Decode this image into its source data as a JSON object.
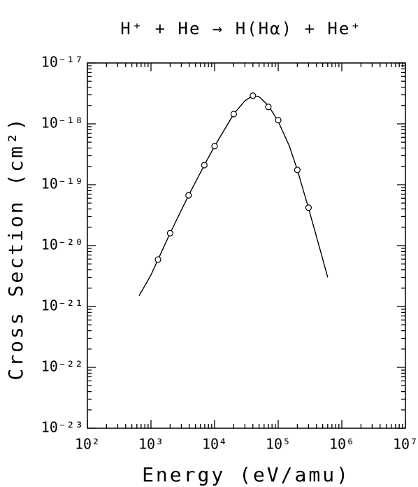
{
  "chart_data": {
    "type": "scatter",
    "title": "H⁺ + He → H(Hα) + He⁺",
    "xlabel": "Energy (eV/amu)",
    "ylabel": "Cross Section (cm²)",
    "xscale": "log",
    "yscale": "log",
    "xlim": [
      100,
      10000000
    ],
    "ylim": [
      1e-23,
      1e-17
    ],
    "xticks": [
      {
        "value": 100,
        "label": "10²"
      },
      {
        "value": 1000,
        "label": "10³"
      },
      {
        "value": 10000,
        "label": "10⁴"
      },
      {
        "value": 100000,
        "label": "10⁵"
      },
      {
        "value": 1000000,
        "label": "10⁶"
      },
      {
        "value": 10000000,
        "label": "10⁷"
      }
    ],
    "yticks": [
      {
        "value": 1e-23,
        "label": "10⁻²³"
      },
      {
        "value": 1e-22,
        "label": "10⁻²²"
      },
      {
        "value": 1e-21,
        "label": "10⁻²¹"
      },
      {
        "value": 1e-20,
        "label": "10⁻²⁰"
      },
      {
        "value": 1e-19,
        "label": "10⁻¹⁹"
      },
      {
        "value": 1e-18,
        "label": "10⁻¹⁸"
      },
      {
        "value": 1e-17,
        "label": "10⁻¹⁷"
      }
    ],
    "grid": false,
    "color": "#000000",
    "points": {
      "x": [
        1290,
        2000,
        3900,
        6900,
        10000,
        20000,
        40000,
        70000,
        100000,
        200000,
        300000
      ],
      "y": [
        5.9e-21,
        1.6e-20,
        6.7e-20,
        2.1e-19,
        4.3e-19,
        1.45e-18,
        2.9e-18,
        1.9e-18,
        1.15e-18,
        1.75e-19,
        4.2e-20
      ]
    },
    "curve": {
      "x": [
        650,
        1000,
        1290,
        2000,
        3900,
        6900,
        10000,
        20000,
        30000,
        40000,
        50000,
        70000,
        100000,
        150000,
        200000,
        300000,
        450000,
        600000
      ],
      "y": [
        1.5e-21,
        3.3e-21,
        5.9e-21,
        1.6e-20,
        6.7e-20,
        2.1e-19,
        4.3e-19,
        1.45e-18,
        2.4e-18,
        2.9e-18,
        2.8e-18,
        2e-18,
        1.1e-18,
        4.3e-19,
        1.75e-19,
        4.1e-20,
        9e-21,
        3e-21
      ]
    }
  }
}
